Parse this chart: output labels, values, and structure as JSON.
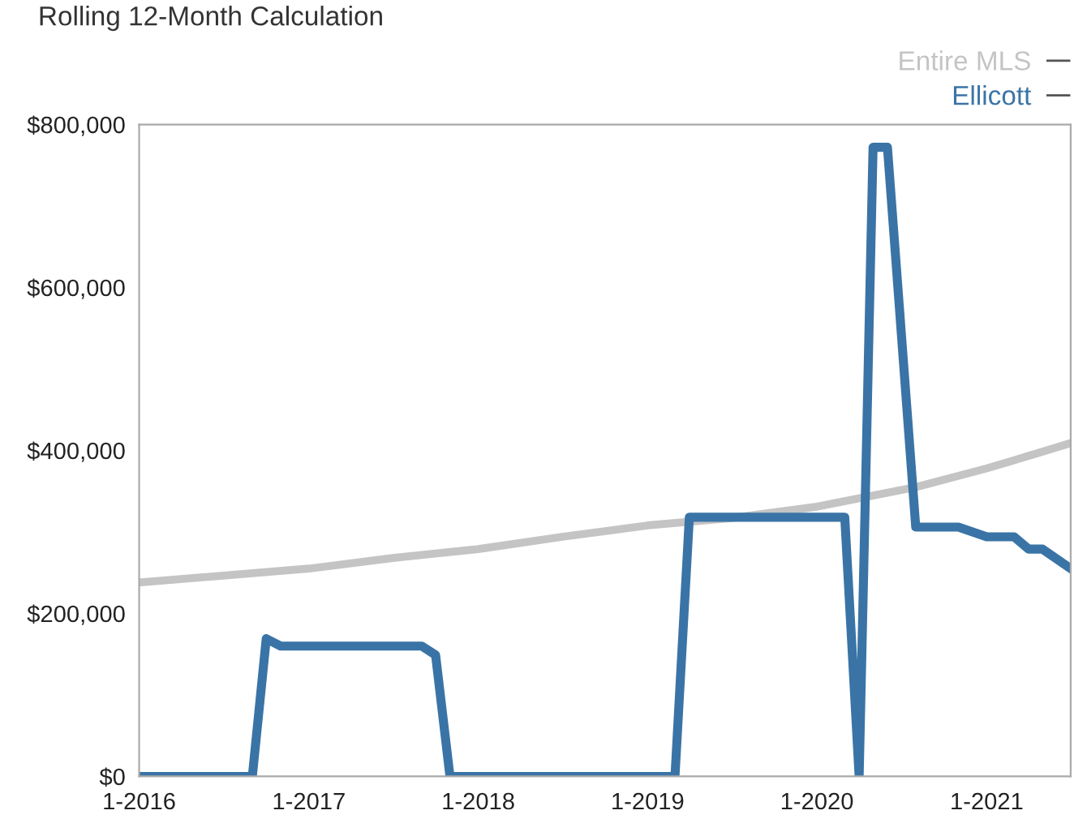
{
  "chart_data": {
    "type": "line",
    "title": "Rolling 12-Month Calculation",
    "series": [
      {
        "name": "Entire MLS",
        "color": "#c4c4c4",
        "x": [
          "2016-01",
          "2017-01",
          "2017-07",
          "2018-01",
          "2018-07",
          "2019-01",
          "2019-07",
          "2020-01",
          "2020-08",
          "2021-01",
          "2021-03",
          "2021-07"
        ],
        "values": [
          238000,
          255000,
          268000,
          279000,
          294000,
          308000,
          317000,
          331000,
          355000,
          378000,
          388000,
          409000
        ]
      },
      {
        "name": "Ellicott",
        "color": "#3a74a6",
        "x": [
          "2016-01",
          "2016-09",
          "2016-10",
          "2016-11",
          "2017-09",
          "2017-10",
          "2017-11",
          "2019-03",
          "2019-04",
          "2020-03",
          "2020-04",
          "2020-05",
          "2020-06",
          "2020-08",
          "2020-11",
          "2021-01",
          "2021-03",
          "2021-04",
          "2021-05",
          "2021-07"
        ],
        "values": [
          0,
          0,
          169000,
          160000,
          160000,
          149000,
          0,
          0,
          318000,
          318000,
          0,
          772000,
          772000,
          306000,
          306000,
          294000,
          294000,
          279000,
          279000,
          255000
        ]
      }
    ],
    "xlim": [
      "2016-01",
      "2021-07"
    ],
    "xticks": [
      {
        "value": "2016-01",
        "label": "1-2016"
      },
      {
        "value": "2017-01",
        "label": "1-2017"
      },
      {
        "value": "2018-01",
        "label": "1-2018"
      },
      {
        "value": "2019-01",
        "label": "1-2019"
      },
      {
        "value": "2020-01",
        "label": "1-2020"
      },
      {
        "value": "2021-01",
        "label": "1-2021"
      }
    ],
    "ylim": [
      0,
      800000
    ],
    "yticks": [
      {
        "value": 0,
        "label": "$0"
      },
      {
        "value": 200000,
        "label": "$200,000"
      },
      {
        "value": 400000,
        "label": "$400,000"
      },
      {
        "value": 600000,
        "label": "$600,000"
      },
      {
        "value": 800000,
        "label": "$800,000"
      }
    ],
    "legend": "top right",
    "marker": "none",
    "line_style": "solid"
  }
}
